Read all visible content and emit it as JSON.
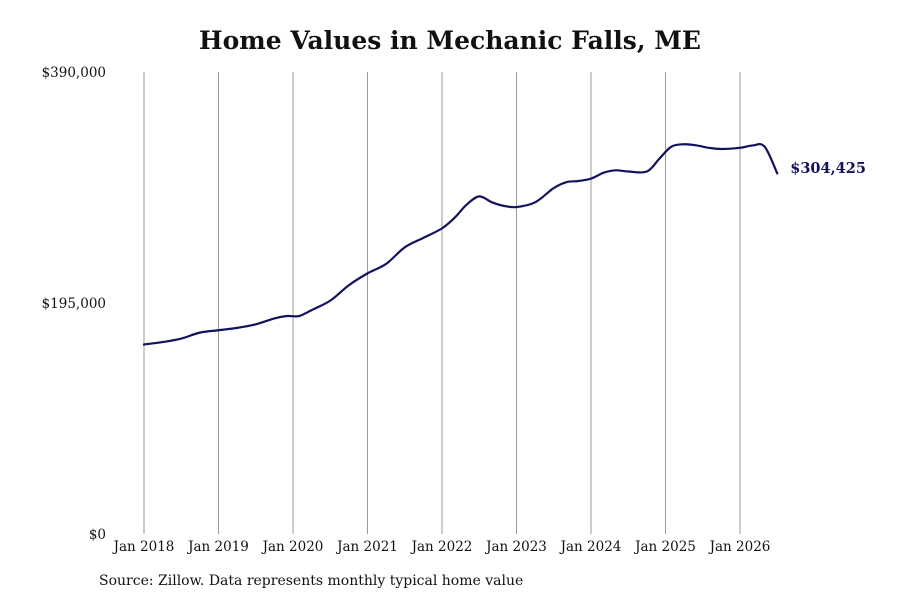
{
  "chart_data": {
    "type": "line",
    "title": "Home Values in Mechanic Falls, ME",
    "xlabel": "",
    "ylabel": "",
    "ylim": [
      0,
      390000
    ],
    "y_ticks": [
      {
        "value": 0,
        "label": "$0"
      },
      {
        "value": 195000,
        "label": "$195,000"
      },
      {
        "value": 390000,
        "label": "$390,000"
      }
    ],
    "x_ticks": [
      {
        "value": 2018,
        "label": "Jan 2018"
      },
      {
        "value": 2019,
        "label": "Jan 2019"
      },
      {
        "value": 2020,
        "label": "Jan 2020"
      },
      {
        "value": 2021,
        "label": "Jan 2021"
      },
      {
        "value": 2022,
        "label": "Jan 2022"
      },
      {
        "value": 2023,
        "label": "Jan 2023"
      },
      {
        "value": 2024,
        "label": "Jan 2024"
      },
      {
        "value": 2025,
        "label": "Jan 2025"
      },
      {
        "value": 2026,
        "label": "Jan 2026"
      }
    ],
    "xlim": [
      2018,
      2026.5
    ],
    "grid": {
      "vertical": true,
      "horizontal": false
    },
    "series": [
      {
        "color": "#12125e",
        "x": [
          2018.0,
          2018.25,
          2018.5,
          2018.75,
          2019.0,
          2019.25,
          2019.5,
          2019.75,
          2019.92,
          2020.08,
          2020.25,
          2020.5,
          2020.75,
          2021.0,
          2021.25,
          2021.5,
          2021.75,
          2022.0,
          2022.17,
          2022.33,
          2022.5,
          2022.67,
          2022.83,
          2023.0,
          2023.25,
          2023.5,
          2023.67,
          2023.83,
          2024.0,
          2024.17,
          2024.33,
          2024.5,
          2024.75,
          2024.92,
          2025.08,
          2025.25,
          2025.42,
          2025.58,
          2025.75,
          2026.0,
          2026.17,
          2026.33,
          2026.5
        ],
        "values": [
          160000,
          162000,
          165000,
          170000,
          172000,
          174000,
          177000,
          182000,
          184000,
          184000,
          189000,
          197000,
          210000,
          220000,
          228000,
          242000,
          250000,
          258000,
          267000,
          278000,
          285000,
          280000,
          277000,
          276000,
          280000,
          292000,
          297000,
          298000,
          300000,
          305000,
          307000,
          306000,
          306000,
          317000,
          327000,
          329000,
          328000,
          326000,
          325000,
          326000,
          328000,
          327000,
          304425
        ]
      }
    ],
    "end_label": "$304,425"
  },
  "source_note": "Source: Zillow. Data represents monthly typical home value"
}
